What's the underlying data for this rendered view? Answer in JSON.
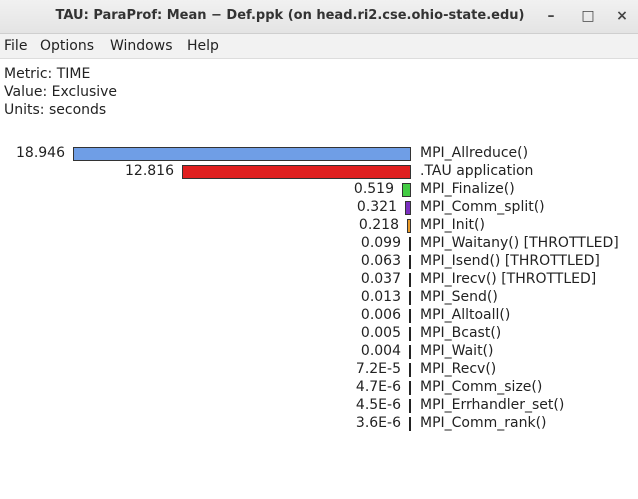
{
  "window": {
    "title": "TAU: ParaProf: Mean − Def.ppk (on head.ri2.cse.ohio-state.edu)",
    "minimize_glyph": "–",
    "maximize_glyph": "□",
    "close_glyph": "×"
  },
  "menu": {
    "file": "File",
    "options": "Options",
    "windows": "Windows",
    "help": "Help"
  },
  "info": {
    "metric": "Metric: TIME",
    "value": "Value: Exclusive",
    "units": "Units: seconds"
  },
  "chart_data": {
    "type": "bar",
    "orientation": "horizontal",
    "max_value": 18.946,
    "categories": [
      "MPI_Allreduce()",
      ".TAU application",
      "MPI_Finalize()",
      "MPI_Comm_split()",
      "MPI_Init()",
      "MPI_Waitany() [THROTTLED]",
      "MPI_Isend() [THROTTLED]",
      "MPI_Irecv() [THROTTLED]",
      "MPI_Send()",
      "MPI_Alltoall()",
      "MPI_Bcast()",
      "MPI_Wait()",
      "MPI_Recv()",
      "MPI_Comm_size()",
      "MPI_Errhandler_set()",
      "MPI_Comm_rank()"
    ],
    "values": [
      18.946,
      12.816,
      0.519,
      0.321,
      0.218,
      0.099,
      0.063,
      0.037,
      0.013,
      0.006,
      0.005,
      0.004,
      7.2e-05,
      4.7e-06,
      4.5e-06,
      3.6e-06
    ],
    "value_labels": [
      "18.946",
      "12.816",
      "0.519",
      "0.321",
      "0.218",
      "0.099",
      "0.063",
      "0.037",
      "0.013",
      "0.006",
      "0.005",
      "0.004",
      "7.2E-5",
      "4.7E-6",
      "4.5E-6",
      "3.6E-6"
    ],
    "colors": [
      "#6f9ee6",
      "#e02020",
      "#44cc44",
      "#7a2fc0",
      "#e89a2a",
      "#3050c0",
      "#602080",
      "#2a8a8a",
      "#999933",
      "#aa4444",
      "#4466aa",
      "#66aa66",
      "#aa66aa",
      "#66aaaa",
      "#888888",
      "#aaaa66"
    ]
  }
}
